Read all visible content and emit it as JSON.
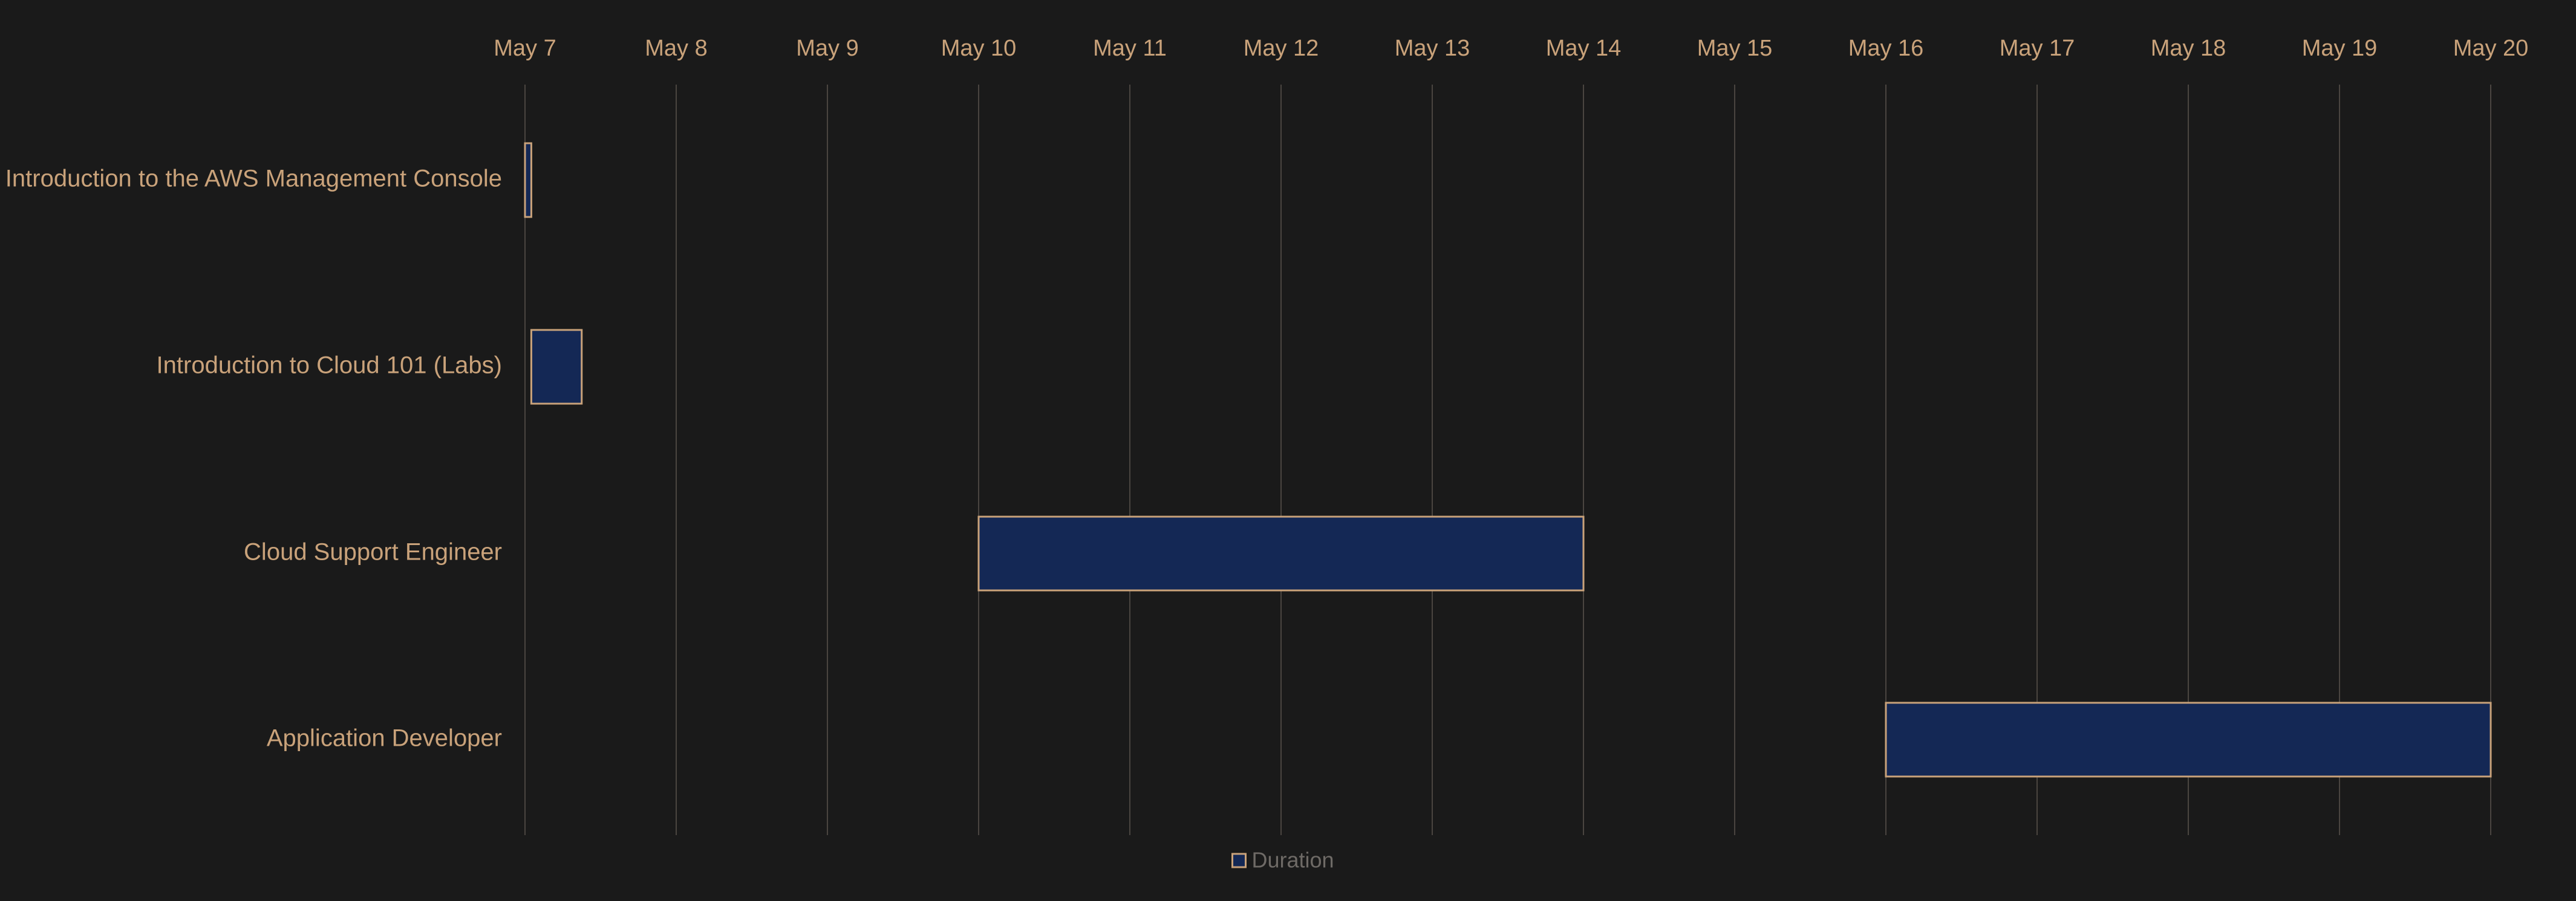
{
  "chart_data": {
    "type": "gantt",
    "x_ticks": [
      "May 7",
      "May 8",
      "May 9",
      "May 10",
      "May 11",
      "May 12",
      "May 13",
      "May 14",
      "May 15",
      "May 16",
      "May 17",
      "May 18",
      "May 19",
      "May 20"
    ],
    "x_range": [
      "May 7",
      "May 20"
    ],
    "grid": true,
    "legend_position": "bottom",
    "series": [
      {
        "name": "Duration",
        "tasks": [
          {
            "label": "Introduction to the AWS Management Console",
            "start": "May 7 00:00",
            "end": "May 7 01:00"
          },
          {
            "label": "Introduction to Cloud 101 (Labs)",
            "start": "May 7 01:00",
            "end": "May 7 09:00"
          },
          {
            "label": "Cloud Support Engineer",
            "start": "May 10",
            "end": "May 14"
          },
          {
            "label": "Application Developer",
            "start": "May 16",
            "end": "May 20"
          }
        ]
      }
    ],
    "legend": [
      "Duration"
    ]
  },
  "colors": {
    "background": "#1a1a1a",
    "text": "#c9a27a",
    "grid": "#4a4540",
    "bar_fill": "#142855",
    "bar_stroke": "#c9a27a",
    "legend_text": "#6e6a66"
  }
}
